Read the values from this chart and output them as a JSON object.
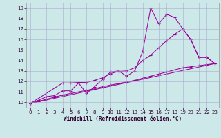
{
  "xlabel": "Windchill (Refroidissement éolien,°C)",
  "bg_color": "#cce8e8",
  "grid_color": "#aaaacc",
  "line_color": "#990099",
  "xlim": [
    -0.5,
    23.5
  ],
  "ylim": [
    9.5,
    19.5
  ],
  "xticks": [
    0,
    1,
    2,
    3,
    4,
    5,
    6,
    7,
    8,
    9,
    10,
    11,
    12,
    13,
    14,
    15,
    16,
    17,
    18,
    19,
    20,
    21,
    22,
    23
  ],
  "yticks": [
    10,
    11,
    12,
    13,
    14,
    15,
    16,
    17,
    18,
    19
  ],
  "line1_x": [
    0,
    1,
    2,
    3,
    4,
    5,
    6,
    7,
    8,
    9,
    10,
    11,
    12,
    13,
    14,
    15,
    16,
    17,
    18,
    19,
    20,
    21,
    22,
    23
  ],
  "line1_y": [
    9.9,
    10.2,
    10.55,
    10.65,
    11.1,
    11.1,
    11.85,
    10.85,
    11.5,
    12.2,
    12.9,
    13.0,
    12.5,
    13.0,
    14.85,
    19.0,
    17.5,
    18.4,
    18.1,
    17.0,
    16.0,
    14.3,
    14.3,
    13.7
  ],
  "line2_x": [
    0,
    4,
    5,
    6,
    7,
    8,
    9,
    10,
    11,
    12,
    13,
    14,
    15,
    16,
    17,
    18,
    19,
    20,
    21,
    22,
    23
  ],
  "line2_y": [
    9.9,
    11.85,
    11.85,
    11.9,
    11.9,
    12.1,
    12.35,
    12.75,
    12.95,
    13.0,
    13.3,
    14.0,
    14.5,
    15.2,
    15.9,
    16.5,
    17.0,
    16.0,
    14.3,
    14.3,
    13.7
  ],
  "line3_x": [
    0,
    1,
    2,
    3,
    4,
    5,
    6,
    7,
    8,
    9,
    10,
    11,
    12,
    13,
    14,
    15,
    16,
    17,
    18,
    19,
    20,
    21,
    22,
    23
  ],
  "line3_y": [
    9.9,
    10.1,
    10.3,
    10.5,
    10.7,
    10.85,
    11.0,
    11.15,
    11.3,
    11.5,
    11.65,
    11.8,
    11.95,
    12.1,
    12.3,
    12.5,
    12.7,
    12.9,
    13.1,
    13.3,
    13.4,
    13.5,
    13.6,
    13.7
  ],
  "line4_x": [
    0,
    23
  ],
  "line4_y": [
    9.9,
    13.7
  ],
  "tick_fontsize": 5,
  "xlabel_fontsize": 5.5
}
